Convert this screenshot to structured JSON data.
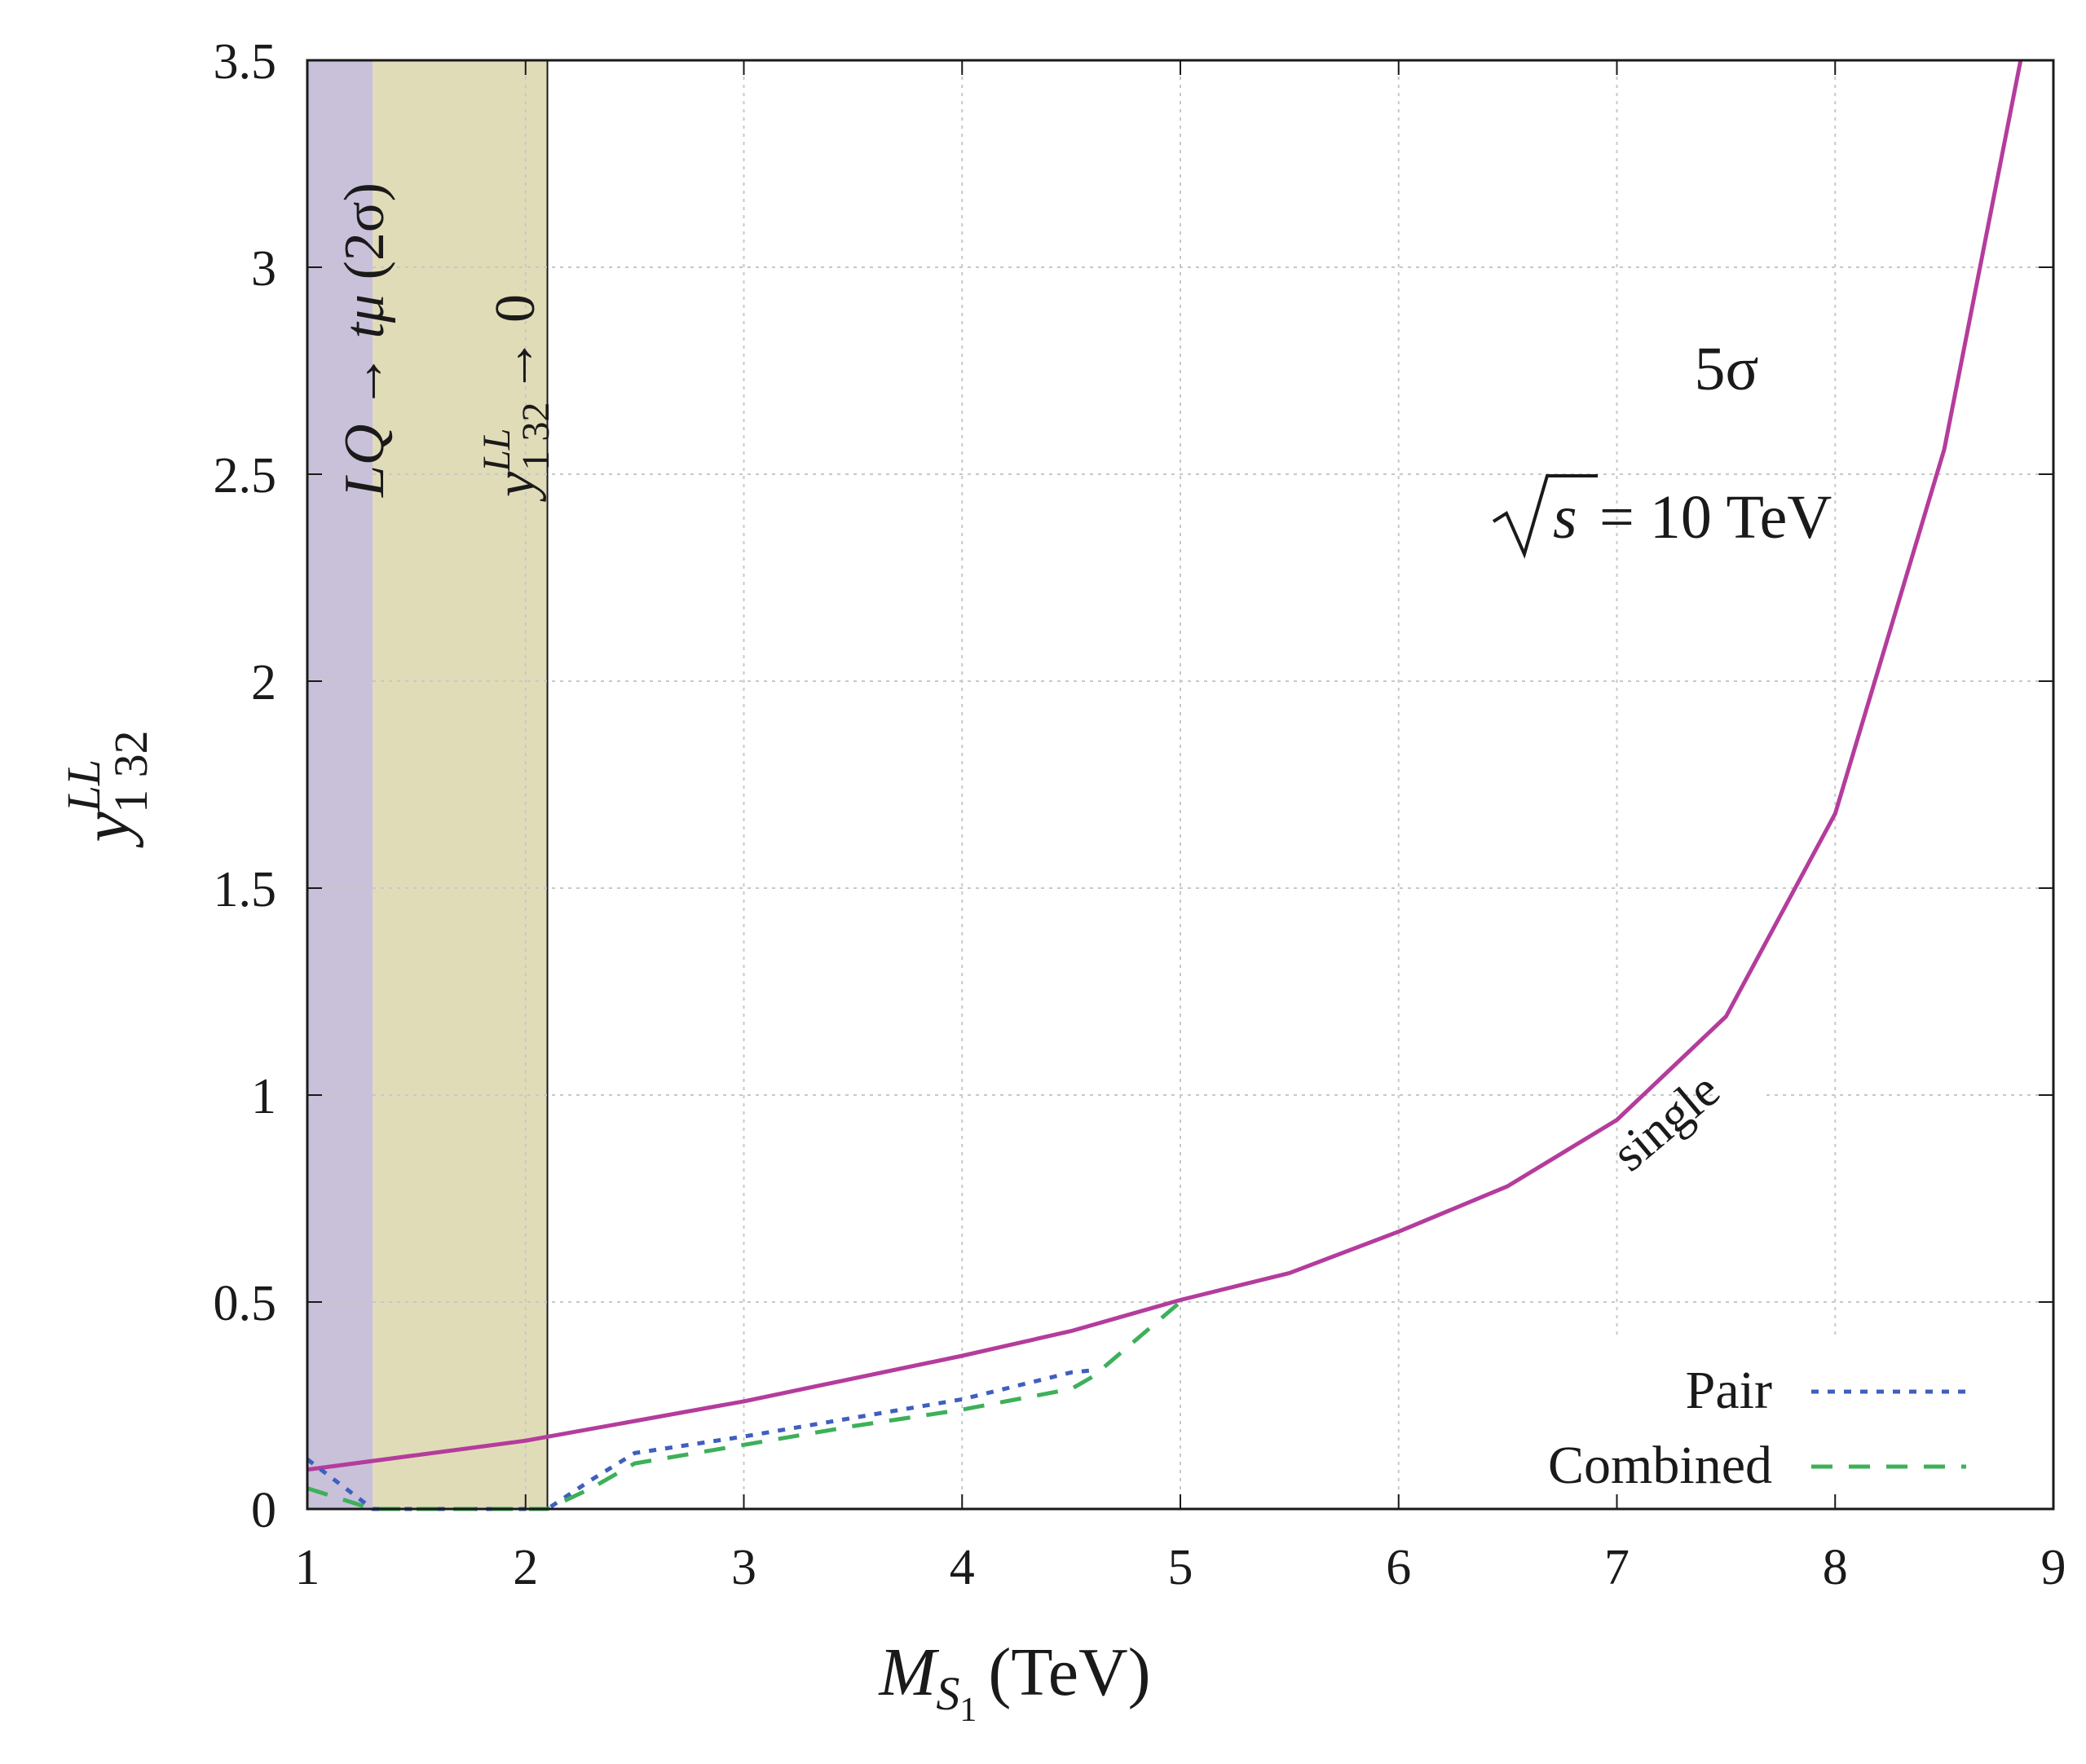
{
  "chart_data": {
    "type": "line",
    "xlim": [
      1,
      9
    ],
    "ylim": [
      0,
      3.5
    ],
    "x_ticks": [
      "1",
      "2",
      "3",
      "4",
      "5",
      "6",
      "7",
      "8",
      "9"
    ],
    "y_ticks": [
      "0",
      "0.5",
      "1",
      "1.5",
      "2",
      "2.5",
      "3",
      "3.5"
    ],
    "grid": true,
    "legend_position": "bottom-right",
    "colors": {
      "single": "#b43c9c",
      "pair": "#3f5fbf",
      "combined": "#3db05a",
      "band1": "#c9c1d9",
      "band2": "#e1dcb8"
    },
    "annotations": {
      "significance": "5σ",
      "energy_prefix": "√s",
      "energy_value": "= 10 TeV",
      "curve_label": "single"
    },
    "bands": [
      {
        "x0": 1,
        "x1": 1.3,
        "label": "LQ → tμ (2σ)"
      },
      {
        "x0": 1.3,
        "x1": 2.1,
        "label": "y1 32 LL → 0"
      }
    ],
    "series": [
      {
        "name": "single",
        "style": "solid",
        "x": [
          1,
          2,
          3,
          4,
          4.5,
          5,
          5.5,
          6,
          6.5,
          7,
          7.5,
          8,
          8.5,
          8.85
        ],
        "y": [
          0.095,
          0.165,
          0.26,
          0.37,
          0.43,
          0.505,
          0.57,
          0.67,
          0.78,
          0.94,
          1.19,
          1.68,
          2.56,
          3.5
        ]
      },
      {
        "name": "Pair",
        "style": "dotted",
        "x": [
          1,
          1.3,
          2.1,
          2.3,
          2.5,
          3,
          3.5,
          4,
          4.5,
          4.6
        ],
        "y": [
          0.12,
          0,
          0,
          0.07,
          0.135,
          0.175,
          0.22,
          0.265,
          0.33,
          0.335
        ]
      },
      {
        "name": "Combined",
        "style": "dashed",
        "x": [
          1,
          1.3,
          2.1,
          2.3,
          2.5,
          3,
          3.5,
          4,
          4.5,
          4.6,
          5
        ],
        "y": [
          0.05,
          0,
          0,
          0.05,
          0.11,
          0.155,
          0.2,
          0.24,
          0.29,
          0.32,
          0.5
        ]
      }
    ],
    "legend": [
      {
        "label": "Pair",
        "style": "dotted"
      },
      {
        "label": "Combined",
        "style": "dashed"
      }
    ]
  }
}
